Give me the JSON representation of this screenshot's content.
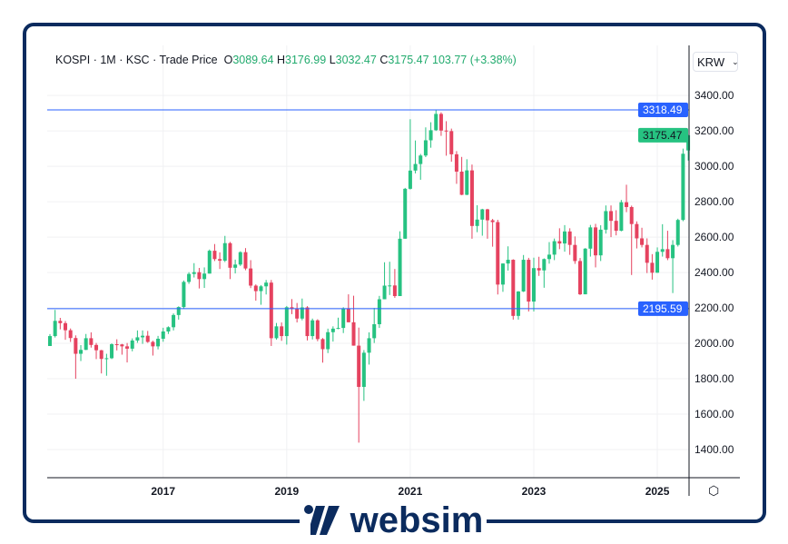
{
  "header": {
    "symbol": "KOSPI",
    "sep": "·",
    "interval": "1M",
    "exchange": "KSC",
    "price_type": "Trade Price",
    "o_label": "O",
    "o": "3089.64",
    "h_label": "H",
    "h": "3176.99",
    "l_label": "L",
    "l": "3032.47",
    "c_label": "C",
    "c": "3175.47",
    "change": "103.77 (+3.38%)"
  },
  "currency": {
    "value": "KRW",
    "icon": "chevron-down-icon"
  },
  "settings_icon": "hexagon-settings-icon",
  "logo": {
    "text": "websim"
  },
  "colors": {
    "up": "#26c281",
    "down": "#e5425f",
    "line": "#2962ff",
    "frame": "#0b2b5e"
  },
  "chart_data": {
    "type": "candlestick",
    "title": "",
    "start": "2015-03",
    "interval": "1M",
    "xlabel": "",
    "ylabel": "",
    "x_ticks": [
      "2017",
      "2019",
      "2021",
      "2023",
      "2025"
    ],
    "y_ticks": [
      "1400.00",
      "1600.00",
      "1800.00",
      "2000.00",
      "2200.00",
      "2400.00",
      "2600.00",
      "2800.00",
      "3000.00",
      "3200.00",
      "3400.00"
    ],
    "ylim": [
      1241,
      3683
    ],
    "grid": true,
    "horizontal_lines": [
      {
        "value": "3318.49"
      },
      {
        "value": "2195.59"
      }
    ],
    "last_price_label": "3175.47",
    "ohlc": [
      [
        1985,
        2052,
        1985,
        2041
      ],
      [
        2041,
        2189,
        2033,
        2127
      ],
      [
        2127,
        2144,
        2079,
        2114
      ],
      [
        2114,
        2126,
        2020,
        2074
      ],
      [
        2074,
        2084,
        2008,
        2030
      ],
      [
        2030,
        2045,
        1800,
        1941
      ],
      [
        1941,
        1990,
        1900,
        1963
      ],
      [
        1963,
        2053,
        1962,
        2029
      ],
      [
        2029,
        2062,
        1976,
        1991
      ],
      [
        1991,
        2002,
        1911,
        1961
      ],
      [
        1961,
        1963,
        1830,
        1912
      ],
      [
        1912,
        1941,
        1817,
        1916
      ],
      [
        1916,
        2000,
        1911,
        1995
      ],
      [
        1995,
        2023,
        1960,
        1994
      ],
      [
        1994,
        1997,
        1936,
        1983
      ],
      [
        1983,
        2002,
        1892,
        1970
      ],
      [
        1970,
        2028,
        1955,
        2016
      ],
      [
        2016,
        2073,
        2003,
        2034
      ],
      [
        2034,
        2073,
        1997,
        2043
      ],
      [
        2043,
        2070,
        2003,
        2008
      ],
      [
        2008,
        2015,
        1931,
        1983
      ],
      [
        1983,
        2042,
        1966,
        2026
      ],
      [
        2026,
        2088,
        2009,
        2067
      ],
      [
        2067,
        2096,
        2053,
        2091
      ],
      [
        2091,
        2169,
        2073,
        2160
      ],
      [
        2160,
        2209,
        2134,
        2205
      ],
      [
        2205,
        2355,
        2197,
        2347
      ],
      [
        2347,
        2402,
        2336,
        2392
      ],
      [
        2392,
        2453,
        2372,
        2402
      ],
      [
        2402,
        2426,
        2310,
        2363
      ],
      [
        2363,
        2429,
        2313,
        2394
      ],
      [
        2394,
        2530,
        2394,
        2523
      ],
      [
        2523,
        2561,
        2465,
        2476
      ],
      [
        2476,
        2514,
        2420,
        2467
      ],
      [
        2467,
        2607,
        2459,
        2566
      ],
      [
        2566,
        2573,
        2363,
        2427
      ],
      [
        2427,
        2473,
        2395,
        2445
      ],
      [
        2445,
        2520,
        2437,
        2515
      ],
      [
        2515,
        2538,
        2413,
        2423
      ],
      [
        2423,
        2470,
        2312,
        2326
      ],
      [
        2326,
        2333,
        2241,
        2295
      ],
      [
        2295,
        2329,
        2218,
        2322
      ],
      [
        2322,
        2358,
        2276,
        2343
      ],
      [
        2343,
        2358,
        1985,
        2029
      ],
      [
        2029,
        2115,
        2021,
        2096
      ],
      [
        2096,
        2118,
        2014,
        2041
      ],
      [
        2041,
        2211,
        1993,
        2204
      ],
      [
        2204,
        2250,
        2165,
        2195
      ],
      [
        2195,
        2228,
        2118,
        2140
      ],
      [
        2140,
        2253,
        2130,
        2203
      ],
      [
        2203,
        2210,
        2016,
        2041
      ],
      [
        2041,
        2140,
        2022,
        2130
      ],
      [
        2130,
        2136,
        2012,
        2024
      ],
      [
        2024,
        2030,
        1891,
        1967
      ],
      [
        1967,
        2083,
        1945,
        2063
      ],
      [
        2063,
        2096,
        2010,
        2083
      ],
      [
        2083,
        2145,
        2080,
        2087
      ],
      [
        2087,
        2204,
        2058,
        2197
      ],
      [
        2197,
        2277,
        2119,
        2119
      ],
      [
        2119,
        2269,
        1987,
        1987
      ],
      [
        1987,
        2089,
        1439,
        1754
      ],
      [
        1754,
        1962,
        1675,
        1947
      ],
      [
        1947,
        2062,
        1880,
        2029
      ],
      [
        2029,
        2200,
        2002,
        2108
      ],
      [
        2108,
        2268,
        2087,
        2249
      ],
      [
        2249,
        2458,
        2249,
        2326
      ],
      [
        2326,
        2461,
        2273,
        2327
      ],
      [
        2327,
        2420,
        2257,
        2267
      ],
      [
        2267,
        2633,
        2267,
        2591
      ],
      [
        2591,
        2878,
        2591,
        2873
      ],
      [
        2873,
        3266,
        2869,
        2976
      ],
      [
        2976,
        3146,
        2960,
        3013
      ],
      [
        3013,
        3070,
        2924,
        3061
      ],
      [
        3061,
        3220,
        3052,
        3147
      ],
      [
        3147,
        3249,
        3105,
        3204
      ],
      [
        3204,
        3316,
        3200,
        3296
      ],
      [
        3296,
        3305,
        3172,
        3202
      ],
      [
        3202,
        3255,
        3060,
        3199
      ],
      [
        3199,
        3213,
        3026,
        3068
      ],
      [
        3068,
        3086,
        2901,
        2970
      ],
      [
        2970,
        3053,
        2837,
        2839
      ],
      [
        2839,
        3040,
        2837,
        2977
      ],
      [
        2977,
        3010,
        2591,
        2663
      ],
      [
        2663,
        2780,
        2628,
        2699
      ],
      [
        2699,
        2760,
        2608,
        2757
      ],
      [
        2757,
        2760,
        2591,
        2695
      ],
      [
        2695,
        2703,
        2546,
        2685
      ],
      [
        2685,
        2698,
        2276,
        2332
      ],
      [
        2332,
        2452,
        2291,
        2451
      ],
      [
        2451,
        2548,
        2411,
        2472
      ],
      [
        2472,
        2475,
        2134,
        2155
      ],
      [
        2155,
        2295,
        2134,
        2293
      ],
      [
        2293,
        2499,
        2290,
        2472
      ],
      [
        2472,
        2483,
        2180,
        2236
      ],
      [
        2236,
        2484,
        2180,
        2425
      ],
      [
        2425,
        2489,
        2381,
        2412
      ],
      [
        2412,
        2480,
        2314,
        2476
      ],
      [
        2476,
        2572,
        2450,
        2501
      ],
      [
        2501,
        2592,
        2470,
        2577
      ],
      [
        2577,
        2650,
        2532,
        2564
      ],
      [
        2564,
        2668,
        2518,
        2632
      ],
      [
        2632,
        2650,
        2500,
        2556
      ],
      [
        2556,
        2604,
        2449,
        2465
      ],
      [
        2465,
        2482,
        2273,
        2277
      ],
      [
        2277,
        2538,
        2277,
        2535
      ],
      [
        2535,
        2669,
        2490,
        2655
      ],
      [
        2655,
        2675,
        2429,
        2497
      ],
      [
        2497,
        2667,
        2465,
        2642
      ],
      [
        2642,
        2779,
        2620,
        2747
      ],
      [
        2747,
        2779,
        2600,
        2692
      ],
      [
        2692,
        2752,
        2610,
        2636
      ],
      [
        2636,
        2810,
        2633,
        2797
      ],
      [
        2797,
        2896,
        2741,
        2770
      ],
      [
        2770,
        2778,
        2386,
        2674
      ],
      [
        2674,
        2689,
        2536,
        2593
      ],
      [
        2593,
        2653,
        2542,
        2556
      ],
      [
        2556,
        2593,
        2397,
        2455
      ],
      [
        2455,
        2504,
        2360,
        2399
      ],
      [
        2399,
        2542,
        2398,
        2517
      ],
      [
        2517,
        2673,
        2490,
        2532
      ],
      [
        2532,
        2636,
        2470,
        2481
      ],
      [
        2481,
        2583,
        2284,
        2556
      ],
      [
        2556,
        2704,
        2547,
        2697
      ],
      [
        2697,
        3100,
        2690,
        3071
      ],
      [
        3089.64,
        3176.99,
        3032.47,
        3175.47
      ]
    ]
  }
}
